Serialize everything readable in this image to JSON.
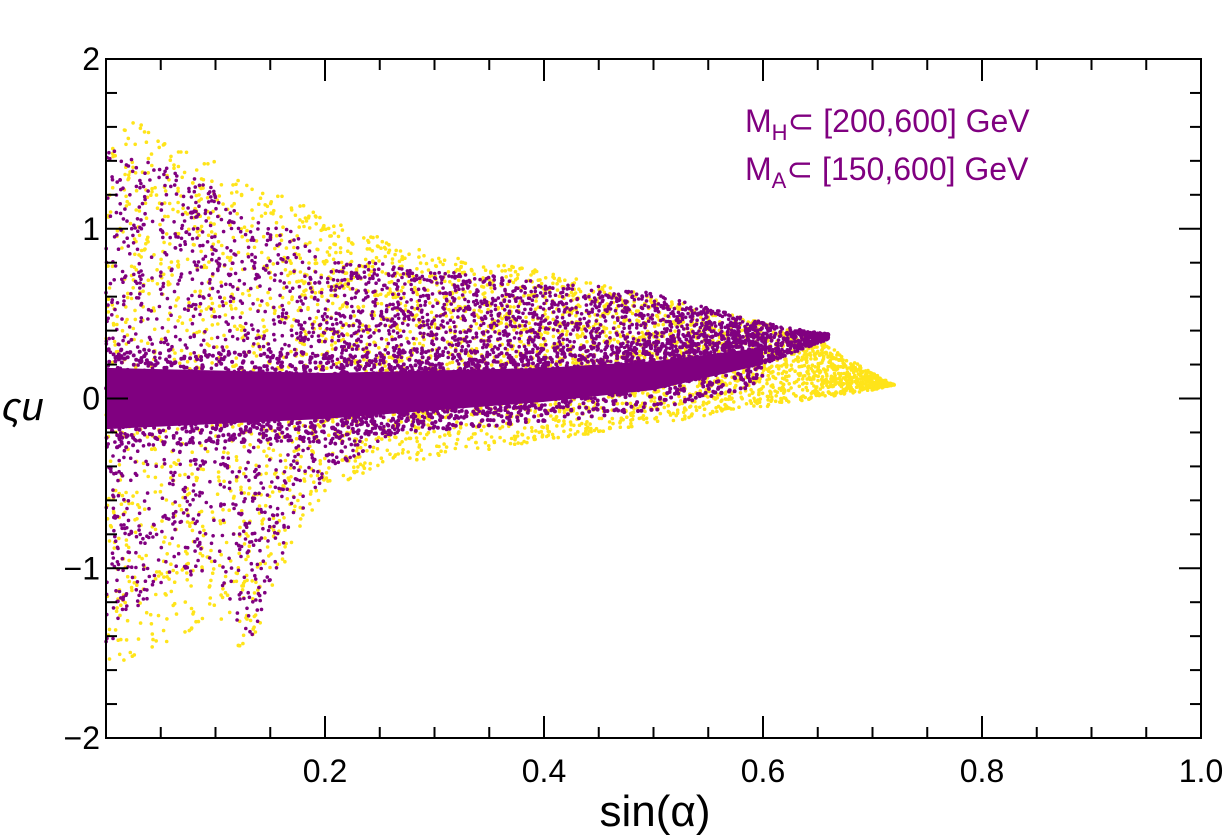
{
  "chart_data": {
    "type": "scatter",
    "xlabel": "sin(α)",
    "ylabel": "ςu",
    "xlim": [
      0.0,
      1.0
    ],
    "ylim": [
      -2,
      2
    ],
    "x_ticks": [
      {
        "value": 0.2,
        "label": "0.2"
      },
      {
        "value": 0.4,
        "label": "0.4"
      },
      {
        "value": 0.6,
        "label": "0.6"
      },
      {
        "value": 0.8,
        "label": "0.8"
      },
      {
        "value": 1.0,
        "label": "1.0"
      }
    ],
    "y_ticks": [
      {
        "value": 2,
        "label": "2"
      },
      {
        "value": 1,
        "label": "1"
      },
      {
        "value": 0,
        "label": "0"
      },
      {
        "value": -1,
        "label": "−1"
      },
      {
        "value": -2,
        "label": "−2"
      }
    ],
    "annotations": [
      {
        "main": "M",
        "sub": "H",
        "rest": "⊂ [200,600] GeV"
      },
      {
        "main": "M",
        "sub": "A",
        "rest": "⊂ [150,600] GeV"
      }
    ],
    "annotation_color": "#800080",
    "series": [
      {
        "color": "#FFE41A",
        "envelope": [
          [
            0.0,
            -1.6,
            1.65
          ],
          [
            0.05,
            -1.45,
            1.6
          ],
          [
            0.1,
            -1.3,
            1.4
          ],
          [
            0.13,
            -1.55,
            1.25
          ],
          [
            0.17,
            -0.85,
            1.2
          ],
          [
            0.2,
            -0.55,
            1.05
          ],
          [
            0.25,
            -0.4,
            0.95
          ],
          [
            0.3,
            -0.35,
            0.85
          ],
          [
            0.4,
            -0.25,
            0.75
          ],
          [
            0.5,
            -0.15,
            0.6
          ],
          [
            0.6,
            -0.05,
            0.45
          ],
          [
            0.65,
            0.0,
            0.35
          ],
          [
            0.7,
            0.05,
            0.15
          ],
          [
            0.72,
            0.08,
            0.08
          ]
        ]
      },
      {
        "color": "#800080",
        "envelope": [
          [
            0.0,
            -1.5,
            1.5
          ],
          [
            0.05,
            -1.1,
            1.4
          ],
          [
            0.1,
            -1.0,
            1.25
          ],
          [
            0.13,
            -1.5,
            1.05
          ],
          [
            0.17,
            -0.75,
            1.0
          ],
          [
            0.2,
            -0.45,
            0.8
          ],
          [
            0.25,
            -0.25,
            0.8
          ],
          [
            0.3,
            -0.15,
            0.75
          ],
          [
            0.4,
            -0.05,
            0.7
          ],
          [
            0.5,
            0.05,
            0.62
          ],
          [
            0.6,
            0.2,
            0.45
          ],
          [
            0.62,
            0.25,
            0.42
          ],
          [
            0.66,
            0.35,
            0.38
          ]
        ],
        "core": [
          [
            0.0,
            -0.18,
            0.18
          ],
          [
            0.2,
            -0.12,
            0.15
          ],
          [
            0.4,
            -0.02,
            0.18
          ],
          [
            0.5,
            0.05,
            0.22
          ],
          [
            0.6,
            0.2,
            0.3
          ]
        ]
      }
    ]
  }
}
